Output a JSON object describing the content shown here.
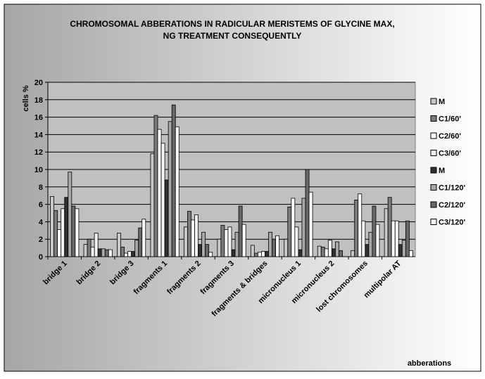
{
  "chart_data": {
    "type": "bar",
    "title": [
      "CHROMOSOMAL ABBERATIONS IN RADICULAR MERISTEMS OF GLYCINE MAX,",
      "NG TREATMENT CONSEQUENTLY"
    ],
    "ylabel": "cells %",
    "xlabel": "abberations",
    "categories": [
      "bridge 1",
      "bridge 2",
      "bridge 3",
      "fragments 1",
      "fragments 2",
      "fragments 3",
      "fragments & bridges",
      "micronucleus 1",
      "micronucleus 2",
      "lost chromosomes",
      "multipolar AT"
    ],
    "series": [
      {
        "name": "M",
        "color": "#c8c8c8",
        "values": [
          6.9,
          1.4,
          2.7,
          11.8,
          3.4,
          2.0,
          1.3,
          2.0,
          1.2,
          0.7,
          5.5
        ]
      },
      {
        "name": "C1/60'",
        "color": "#7a7a7a",
        "values": [
          5.3,
          2.0,
          1.1,
          16.2,
          5.2,
          3.6,
          0.4,
          5.7,
          1.1,
          6.5,
          6.8
        ]
      },
      {
        "name": "C2/60'",
        "color": "#ffffff",
        "values": [
          3.1,
          1.1,
          0.4,
          14.6,
          4.2,
          3.1,
          0.5,
          6.7,
          0.9,
          7.2,
          4.1
        ]
      },
      {
        "name": "C3/60'",
        "color": "#f4f4f4",
        "values": [
          5.5,
          2.7,
          0.6,
          13.0,
          4.8,
          3.4,
          0.6,
          3.4,
          1.9,
          4.1,
          4.1
        ]
      },
      {
        "name": "M",
        "color": "#303030",
        "values": [
          6.8,
          0.9,
          0.6,
          8.8,
          1.4,
          0.8,
          0.6,
          0.8,
          0.9,
          1.4,
          1.4
        ]
      },
      {
        "name": "C1/120'",
        "color": "#a8a8a8",
        "values": [
          9.7,
          0.9,
          1.9,
          15.5,
          2.8,
          2.8,
          2.8,
          6.7,
          1.7,
          2.8,
          1.9
        ]
      },
      {
        "name": "C2/120'",
        "color": "#686868",
        "values": [
          5.8,
          0.8,
          3.3,
          17.4,
          1.4,
          5.8,
          2.0,
          10.0,
          0.7,
          5.8,
          4.1
        ]
      },
      {
        "name": "C3/120'",
        "color": "#ffffff",
        "values": [
          5.5,
          0.8,
          4.3,
          14.9,
          0.5,
          3.7,
          2.4,
          7.4,
          0,
          3.7,
          0.7
        ]
      }
    ],
    "ylim": [
      0,
      20
    ],
    "yticks": [
      0,
      2,
      4,
      6,
      8,
      10,
      12,
      14,
      16,
      18,
      20
    ],
    "grid": true,
    "legend": "right"
  }
}
